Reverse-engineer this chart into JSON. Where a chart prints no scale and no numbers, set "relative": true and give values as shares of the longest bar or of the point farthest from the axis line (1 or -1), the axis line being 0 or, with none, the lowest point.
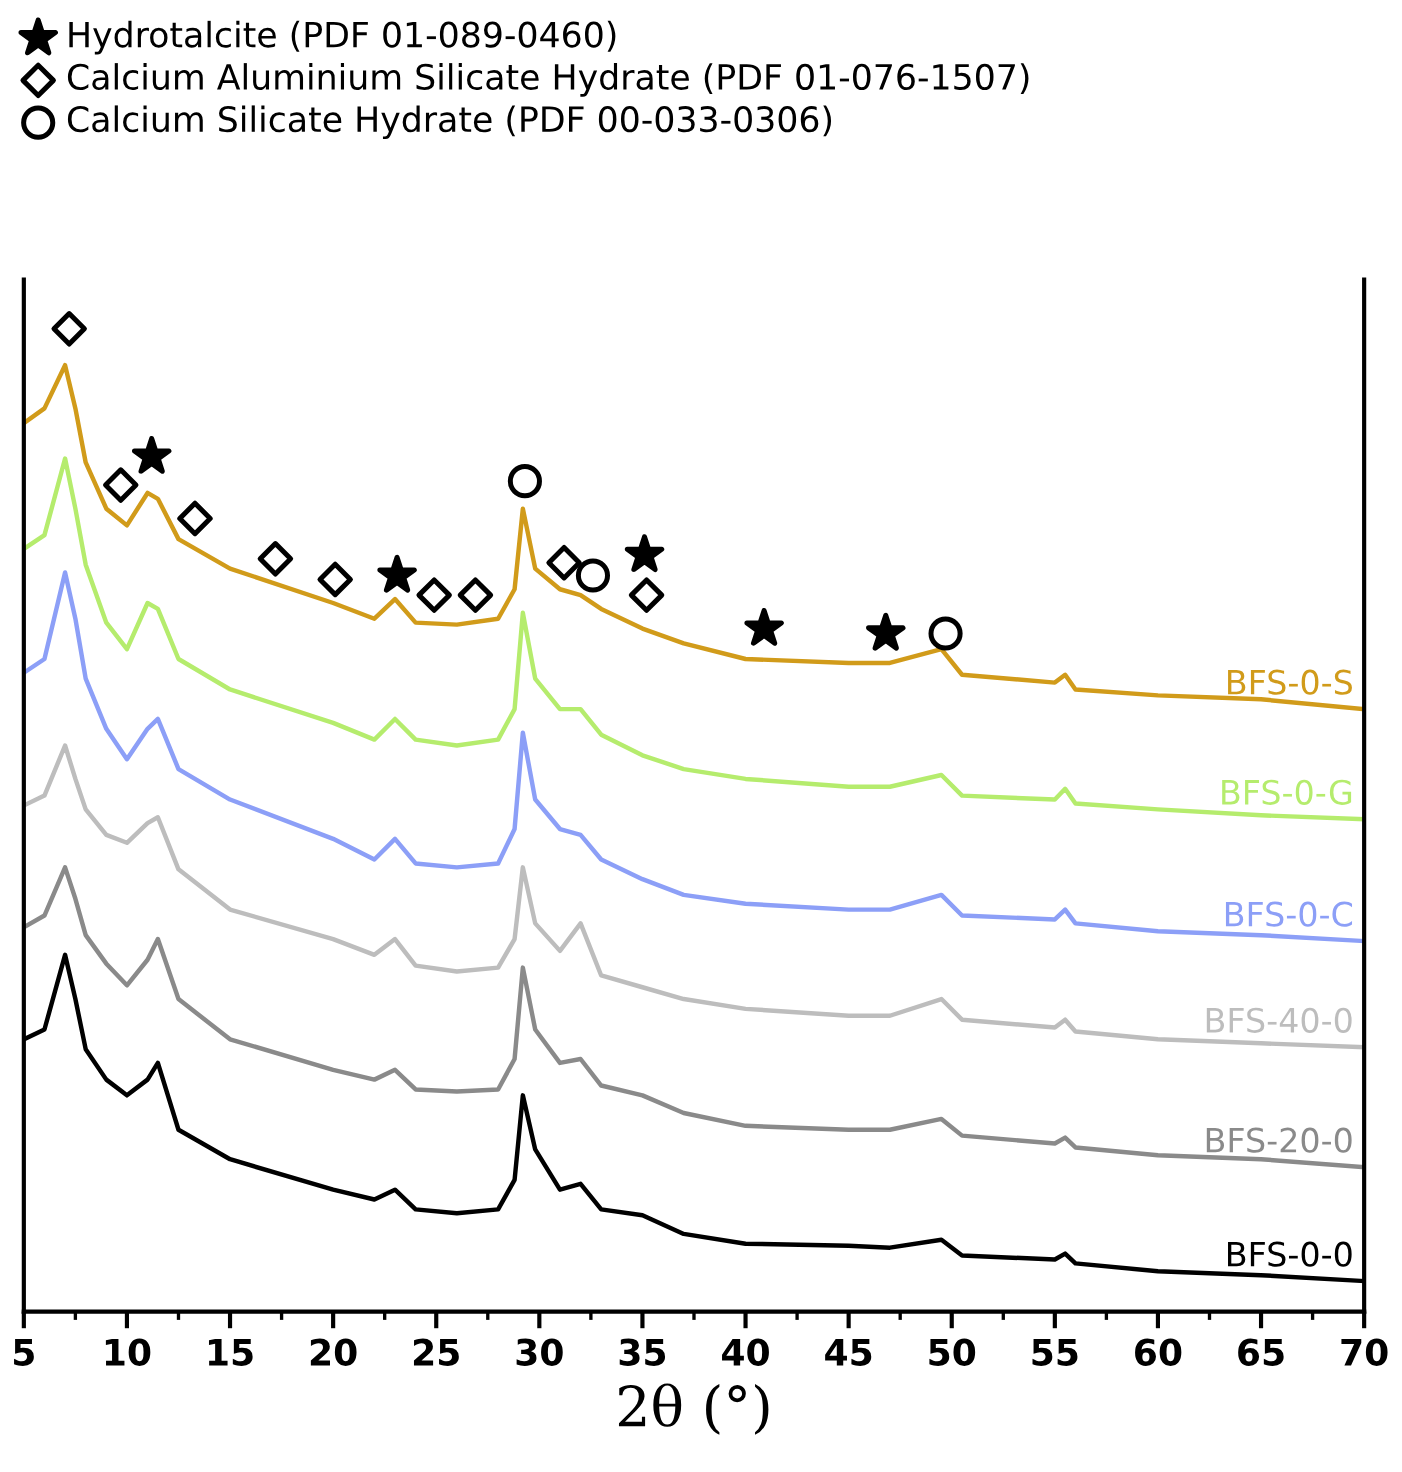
{
  "chart_data": {
    "type": "line",
    "relative": true,
    "xlabel": "2θ (°)",
    "xlim": [
      5,
      70
    ],
    "xticks": [
      5,
      10,
      15,
      20,
      25,
      30,
      35,
      40,
      45,
      50,
      55,
      60,
      65,
      70
    ],
    "legend": "top left",
    "x": [
      5,
      6,
      7,
      7.5,
      8,
      9,
      10,
      11,
      11.5,
      12.5,
      15,
      20,
      22,
      23,
      24,
      26,
      28,
      28.8,
      29.2,
      29.8,
      31,
      32,
      33,
      35,
      37,
      40,
      45,
      47,
      49.5,
      50.5,
      55,
      55.5,
      56,
      60,
      65,
      70
    ],
    "series": [
      {
        "name": "BFS-0-S",
        "color": "#d19b1a",
        "values": [
          0.904,
          0.919,
          0.963,
          0.919,
          0.864,
          0.817,
          0.8,
          0.833,
          0.827,
          0.786,
          0.756,
          0.721,
          0.705,
          0.725,
          0.701,
          0.699,
          0.705,
          0.735,
          0.817,
          0.756,
          0.735,
          0.729,
          0.715,
          0.695,
          0.68,
          0.664,
          0.66,
          0.66,
          0.674,
          0.648,
          0.64,
          0.648,
          0.633,
          0.627,
          0.623,
          0.613
        ]
      },
      {
        "name": "BFS-0-G",
        "color": "#b5ec6d",
        "values": [
          0.776,
          0.79,
          0.868,
          0.817,
          0.76,
          0.701,
          0.674,
          0.721,
          0.715,
          0.664,
          0.633,
          0.599,
          0.582,
          0.603,
          0.582,
          0.576,
          0.582,
          0.613,
          0.711,
          0.644,
          0.613,
          0.613,
          0.587,
          0.566,
          0.552,
          0.542,
          0.534,
          0.534,
          0.546,
          0.525,
          0.521,
          0.532,
          0.517,
          0.511,
          0.505,
          0.501
        ]
      },
      {
        "name": "BFS-0-C",
        "color": "#8c9ff7",
        "values": [
          0.65,
          0.664,
          0.752,
          0.705,
          0.644,
          0.593,
          0.562,
          0.593,
          0.603,
          0.552,
          0.521,
          0.481,
          0.46,
          0.481,
          0.456,
          0.452,
          0.456,
          0.491,
          0.589,
          0.521,
          0.491,
          0.485,
          0.46,
          0.44,
          0.424,
          0.415,
          0.409,
          0.409,
          0.424,
          0.403,
          0.399,
          0.409,
          0.395,
          0.387,
          0.383,
          0.377
        ]
      },
      {
        "name": "BFS-40-0",
        "color": "#bdbdbd",
        "values": [
          0.515,
          0.525,
          0.576,
          0.542,
          0.511,
          0.485,
          0.477,
          0.497,
          0.503,
          0.45,
          0.409,
          0.379,
          0.363,
          0.379,
          0.352,
          0.346,
          0.35,
          0.379,
          0.452,
          0.395,
          0.367,
          0.395,
          0.342,
          0.33,
          0.318,
          0.308,
          0.301,
          0.301,
          0.318,
          0.297,
          0.289,
          0.297,
          0.285,
          0.277,
          0.273,
          0.269
        ]
      },
      {
        "name": "BFS-20-0",
        "color": "#8a8a8a",
        "values": [
          0.391,
          0.403,
          0.452,
          0.42,
          0.383,
          0.354,
          0.332,
          0.358,
          0.379,
          0.318,
          0.277,
          0.246,
          0.236,
          0.246,
          0.226,
          0.224,
          0.226,
          0.257,
          0.35,
          0.287,
          0.253,
          0.257,
          0.23,
          0.22,
          0.202,
          0.189,
          0.185,
          0.185,
          0.196,
          0.179,
          0.171,
          0.177,
          0.167,
          0.159,
          0.155,
          0.147
        ]
      },
      {
        "name": "BFS-0-0",
        "color": "#000000",
        "values": [
          0.277,
          0.287,
          0.363,
          0.318,
          0.267,
          0.236,
          0.22,
          0.236,
          0.253,
          0.185,
          0.155,
          0.124,
          0.114,
          0.124,
          0.104,
          0.1,
          0.104,
          0.134,
          0.22,
          0.165,
          0.124,
          0.13,
          0.104,
          0.098,
          0.079,
          0.069,
          0.067,
          0.065,
          0.073,
          0.057,
          0.053,
          0.059,
          0.049,
          0.041,
          0.037,
          0.031
        ]
      },
      {
        "name": "Hydrotalcite (PDF 01-089-0460)",
        "type": "scatter",
        "marker": "star",
        "color": "#000000",
        "x": [
          11.2,
          23.1,
          35.1,
          40.9,
          46.8
        ],
        "values": [
          0.87,
          0.749,
          0.77,
          0.695,
          0.69
        ]
      },
      {
        "name": "Calcium Aluminium Silicate Hydrate (PDF 01-076-1507)",
        "type": "scatter",
        "marker": "diamond",
        "color": "#000000",
        "x": [
          7.2,
          9.7,
          13.3,
          17.2,
          20.1,
          24.9,
          26.9,
          31.2,
          35.2
        ],
        "values": [
          1.0,
          0.841,
          0.807,
          0.766,
          0.745,
          0.729,
          0.729,
          0.762,
          0.729
        ]
      },
      {
        "name": "Calcium Silicate Hydrate (PDF 00-033-0306)",
        "type": "scatter",
        "marker": "circle",
        "color": "#000000",
        "x": [
          29.3,
          32.6,
          49.7
        ],
        "values": [
          0.845,
          0.749,
          0.69
        ]
      }
    ]
  }
}
